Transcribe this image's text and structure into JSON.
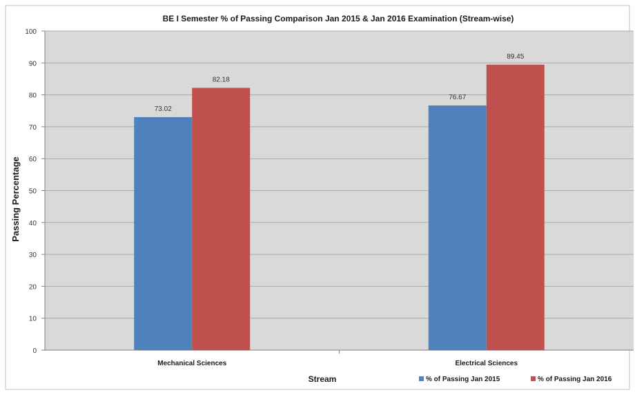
{
  "chart_data": {
    "type": "bar",
    "title": "BE I Semester % of Passing Comparison Jan 2015 & Jan 2016 Examination (Stream-wise)",
    "xlabel": "Stream",
    "ylabel": "Passing Percentage",
    "categories": [
      "Mechanical Sciences",
      "Electrical Sciences"
    ],
    "series": [
      {
        "name": "% of Passing Jan 2015",
        "values": [
          73.02,
          76.67
        ],
        "color": "#4f81bd"
      },
      {
        "name": "% of Passing Jan 2016",
        "values": [
          82.18,
          89.45
        ],
        "color": "#c0504d"
      }
    ],
    "ylim": [
      0,
      100
    ],
    "yticks": [
      0,
      10,
      20,
      30,
      40,
      50,
      60,
      70,
      80,
      90,
      100
    ],
    "grid": true,
    "legend": "bottom-right",
    "data_labels": [
      "73.02",
      "76.67",
      "82.18",
      "89.45"
    ],
    "plot_background": "#d9d9d9",
    "gridline_color": "#aaaaaa"
  }
}
